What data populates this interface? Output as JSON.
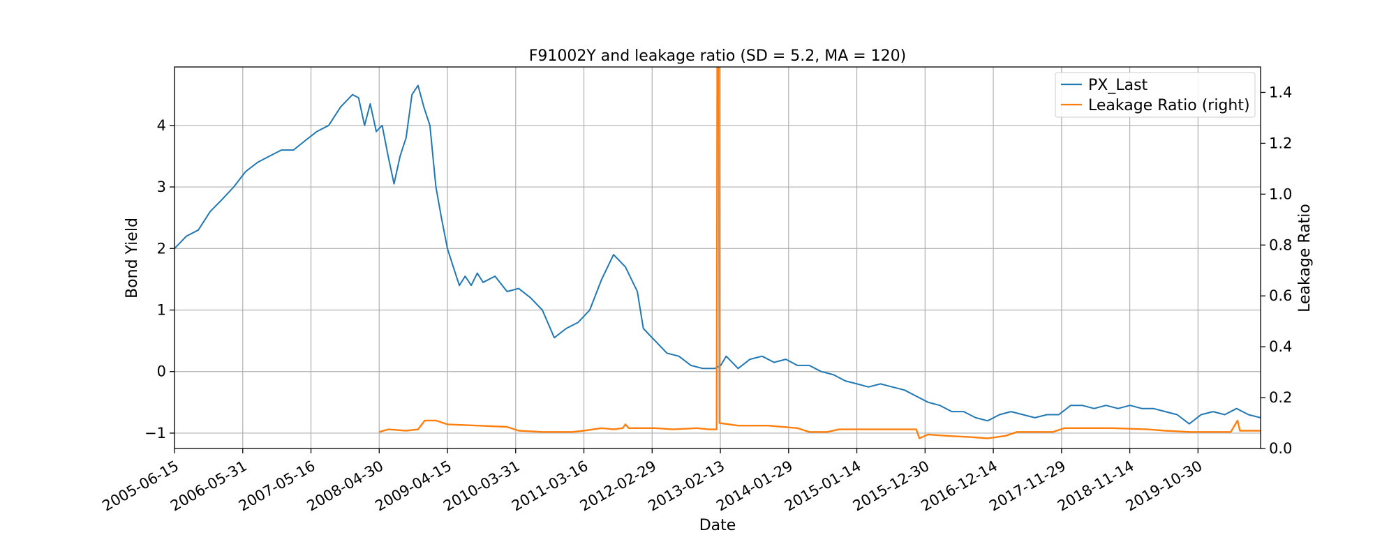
{
  "chart_data": {
    "type": "line",
    "title": "F91002Y and leakage ratio (SD = 5.2, MA = 120)",
    "xlabel": "Date",
    "ylabel": "Bond Yield",
    "y2label": "Leakage Ratio",
    "x_tick_labels": [
      "2005-06-15",
      "2006-05-31",
      "2007-05-16",
      "2008-04-30",
      "2009-04-15",
      "2010-03-31",
      "2011-03-16",
      "2012-02-29",
      "2013-02-13",
      "2014-01-29",
      "2015-01-14",
      "2015-12-30",
      "2016-12-14",
      "2017-11-29",
      "2018-11-14",
      "2019-10-30"
    ],
    "x_range": [
      "2005-06-15",
      "2020-09-15"
    ],
    "ylim": [
      -1.25,
      4.95
    ],
    "y_ticks": [
      "−1",
      "0",
      "1",
      "2",
      "3",
      "4"
    ],
    "y2lim": [
      0,
      1.5
    ],
    "y2_ticks": [
      "0.0",
      "0.2",
      "0.4",
      "0.6",
      "0.8",
      "1.0",
      "1.2",
      "1.4"
    ],
    "grid": true,
    "legend_position": "top-right",
    "series": [
      {
        "name": "PX_Last",
        "axis": "left",
        "color": "#1f77b4",
        "points": [
          [
            "2005-06-15",
            2.0
          ],
          [
            "2005-08-15",
            2.2
          ],
          [
            "2005-10-15",
            2.3
          ],
          [
            "2005-12-15",
            2.6
          ],
          [
            "2006-02-15",
            2.8
          ],
          [
            "2006-04-15",
            3.0
          ],
          [
            "2006-06-15",
            3.25
          ],
          [
            "2006-08-15",
            3.4
          ],
          [
            "2006-10-15",
            3.5
          ],
          [
            "2006-12-15",
            3.6
          ],
          [
            "2007-02-15",
            3.6
          ],
          [
            "2007-04-15",
            3.75
          ],
          [
            "2007-06-15",
            3.9
          ],
          [
            "2007-08-15",
            4.0
          ],
          [
            "2007-10-15",
            4.3
          ],
          [
            "2007-12-15",
            4.5
          ],
          [
            "2008-01-15",
            4.45
          ],
          [
            "2008-02-15",
            4.0
          ],
          [
            "2008-03-15",
            4.35
          ],
          [
            "2008-04-15",
            3.9
          ],
          [
            "2008-05-15",
            4.0
          ],
          [
            "2008-06-15",
            3.5
          ],
          [
            "2008-07-15",
            3.05
          ],
          [
            "2008-08-15",
            3.5
          ],
          [
            "2008-09-15",
            3.8
          ],
          [
            "2008-10-15",
            4.5
          ],
          [
            "2008-11-15",
            4.65
          ],
          [
            "2008-12-15",
            4.3
          ],
          [
            "2009-01-15",
            4.0
          ],
          [
            "2009-02-15",
            3.0
          ],
          [
            "2009-03-15",
            2.5
          ],
          [
            "2009-04-15",
            2.0
          ],
          [
            "2009-05-15",
            1.7
          ],
          [
            "2009-06-15",
            1.4
          ],
          [
            "2009-07-15",
            1.55
          ],
          [
            "2009-08-15",
            1.4
          ],
          [
            "2009-09-15",
            1.6
          ],
          [
            "2009-10-15",
            1.45
          ],
          [
            "2009-12-15",
            1.55
          ],
          [
            "2010-02-15",
            1.3
          ],
          [
            "2010-04-15",
            1.35
          ],
          [
            "2010-06-15",
            1.2
          ],
          [
            "2010-08-15",
            1.0
          ],
          [
            "2010-10-15",
            0.55
          ],
          [
            "2010-12-15",
            0.7
          ],
          [
            "2011-02-15",
            0.8
          ],
          [
            "2011-04-15",
            1.0
          ],
          [
            "2011-06-15",
            1.5
          ],
          [
            "2011-08-15",
            1.9
          ],
          [
            "2011-10-15",
            1.7
          ],
          [
            "2011-12-15",
            1.3
          ],
          [
            "2012-01-15",
            0.7
          ],
          [
            "2012-03-15",
            0.5
          ],
          [
            "2012-05-15",
            0.3
          ],
          [
            "2012-07-15",
            0.25
          ],
          [
            "2012-09-15",
            0.1
          ],
          [
            "2012-11-15",
            0.05
          ],
          [
            "2013-01-15",
            0.05
          ],
          [
            "2013-02-15",
            0.1
          ],
          [
            "2013-03-15",
            0.25
          ],
          [
            "2013-05-15",
            0.05
          ],
          [
            "2013-07-15",
            0.2
          ],
          [
            "2013-09-15",
            0.25
          ],
          [
            "2013-11-15",
            0.15
          ],
          [
            "2014-01-15",
            0.2
          ],
          [
            "2014-03-15",
            0.1
          ],
          [
            "2014-05-15",
            0.1
          ],
          [
            "2014-07-15",
            0.0
          ],
          [
            "2014-09-15",
            -0.05
          ],
          [
            "2014-11-15",
            -0.15
          ],
          [
            "2015-01-15",
            -0.2
          ],
          [
            "2015-03-15",
            -0.25
          ],
          [
            "2015-05-15",
            -0.2
          ],
          [
            "2015-07-15",
            -0.25
          ],
          [
            "2015-09-15",
            -0.3
          ],
          [
            "2015-11-15",
            -0.4
          ],
          [
            "2016-01-15",
            -0.5
          ],
          [
            "2016-03-15",
            -0.55
          ],
          [
            "2016-05-15",
            -0.65
          ],
          [
            "2016-07-15",
            -0.65
          ],
          [
            "2016-09-15",
            -0.75
          ],
          [
            "2016-11-15",
            -0.8
          ],
          [
            "2017-01-15",
            -0.7
          ],
          [
            "2017-03-15",
            -0.65
          ],
          [
            "2017-05-15",
            -0.7
          ],
          [
            "2017-07-15",
            -0.75
          ],
          [
            "2017-09-15",
            -0.7
          ],
          [
            "2017-11-15",
            -0.7
          ],
          [
            "2018-01-15",
            -0.55
          ],
          [
            "2018-03-15",
            -0.55
          ],
          [
            "2018-05-15",
            -0.6
          ],
          [
            "2018-07-15",
            -0.55
          ],
          [
            "2018-09-15",
            -0.6
          ],
          [
            "2018-11-15",
            -0.55
          ],
          [
            "2019-01-15",
            -0.6
          ],
          [
            "2019-03-15",
            -0.6
          ],
          [
            "2019-05-15",
            -0.65
          ],
          [
            "2019-07-15",
            -0.7
          ],
          [
            "2019-09-15",
            -0.85
          ],
          [
            "2019-11-15",
            -0.7
          ],
          [
            "2020-01-15",
            -0.65
          ],
          [
            "2020-03-15",
            -0.7
          ],
          [
            "2020-05-15",
            -0.6
          ],
          [
            "2020-07-15",
            -0.7
          ],
          [
            "2020-09-15",
            -0.75
          ]
        ]
      },
      {
        "name": "Leakage Ratio (right)",
        "axis": "right",
        "color": "#ff7f0e",
        "points": [
          [
            "2008-04-30",
            0.065
          ],
          [
            "2008-06-15",
            0.075
          ],
          [
            "2008-09-15",
            0.07
          ],
          [
            "2008-11-15",
            0.075
          ],
          [
            "2008-12-20",
            0.11
          ],
          [
            "2009-02-15",
            0.11
          ],
          [
            "2009-04-15",
            0.095
          ],
          [
            "2009-09-15",
            0.09
          ],
          [
            "2010-02-15",
            0.085
          ],
          [
            "2010-04-15",
            0.07
          ],
          [
            "2010-08-15",
            0.065
          ],
          [
            "2011-01-15",
            0.065
          ],
          [
            "2011-03-15",
            0.07
          ],
          [
            "2011-06-15",
            0.08
          ],
          [
            "2011-08-15",
            0.075
          ],
          [
            "2011-10-01",
            0.08
          ],
          [
            "2011-10-15",
            0.095
          ],
          [
            "2011-11-01",
            0.08
          ],
          [
            "2012-03-15",
            0.08
          ],
          [
            "2012-06-15",
            0.075
          ],
          [
            "2012-10-15",
            0.08
          ],
          [
            "2012-12-15",
            0.075
          ],
          [
            "2013-01-25",
            0.075
          ],
          [
            "2013-01-28",
            1.5
          ],
          [
            "2013-02-05",
            1.5
          ],
          [
            "2013-02-08",
            0.1
          ],
          [
            "2013-05-15",
            0.09
          ],
          [
            "2013-10-15",
            0.09
          ],
          [
            "2014-03-15",
            0.08
          ],
          [
            "2014-05-15",
            0.065
          ],
          [
            "2014-08-15",
            0.065
          ],
          [
            "2014-10-15",
            0.075
          ],
          [
            "2015-05-15",
            0.075
          ],
          [
            "2015-11-15",
            0.075
          ],
          [
            "2015-12-01",
            0.04
          ],
          [
            "2016-01-15",
            0.055
          ],
          [
            "2016-04-15",
            0.05
          ],
          [
            "2016-08-15",
            0.045
          ],
          [
            "2016-11-15",
            0.04
          ],
          [
            "2017-02-15",
            0.05
          ],
          [
            "2017-04-15",
            0.065
          ],
          [
            "2017-10-15",
            0.065
          ],
          [
            "2017-12-15",
            0.08
          ],
          [
            "2018-04-15",
            0.08
          ],
          [
            "2018-08-15",
            0.08
          ],
          [
            "2019-02-15",
            0.075
          ],
          [
            "2019-05-15",
            0.07
          ],
          [
            "2019-09-15",
            0.065
          ],
          [
            "2020-02-15",
            0.065
          ],
          [
            "2020-04-15",
            0.065
          ],
          [
            "2020-05-20",
            0.11
          ],
          [
            "2020-06-01",
            0.07
          ],
          [
            "2020-09-15",
            0.07
          ]
        ]
      }
    ]
  }
}
